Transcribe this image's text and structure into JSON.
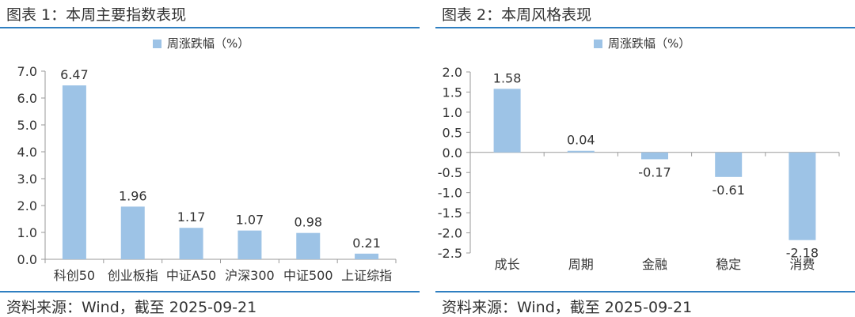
{
  "colors": {
    "bar": "#9dc3e6",
    "rule": "#2f7fc1",
    "axis": "#9a9a9a"
  },
  "charts": [
    {
      "title": "图表 1：本周主要指数表现",
      "source": "资料来源：Wind，截至 2025-09-21"
    },
    {
      "title": "图表 2：本周风格表现",
      "source": "资料来源：Wind，截至 2025-09-21"
    }
  ],
  "chart_data": [
    {
      "type": "bar",
      "legend": "周涨跌幅（%）",
      "legend_position": "top-center",
      "categories": [
        "科创50",
        "创业板指",
        "中证A50",
        "沪深300",
        "中证500",
        "上证综指"
      ],
      "series": [
        {
          "name": "周涨跌幅（%）",
          "values": [
            6.47,
            1.96,
            1.17,
            1.07,
            0.98,
            0.21
          ]
        }
      ],
      "data_labels": [
        "6.47",
        "1.96",
        "1.17",
        "1.07",
        "0.98",
        "0.21"
      ],
      "ylim": [
        0,
        7
      ],
      "yticks": [
        0,
        1,
        2,
        3,
        4,
        5,
        6,
        7
      ],
      "ytick_labels": [
        "0.0",
        "1.0",
        "2.0",
        "3.0",
        "4.0",
        "5.0",
        "6.0",
        "7.0"
      ],
      "grid": false
    },
    {
      "type": "bar",
      "legend": "周涨跌幅（%）",
      "legend_position": "top-center",
      "categories": [
        "成长",
        "周期",
        "金融",
        "稳定",
        "消费"
      ],
      "series": [
        {
          "name": "周涨跌幅（%）",
          "values": [
            1.58,
            0.04,
            -0.17,
            -0.61,
            -2.18
          ]
        }
      ],
      "data_labels": [
        "1.58",
        "0.04",
        "-0.17",
        "-0.61",
        "-2.18"
      ],
      "ylim": [
        -2.5,
        2
      ],
      "yticks": [
        -2.5,
        -2,
        -1.5,
        -1,
        -0.5,
        0,
        0.5,
        1,
        1.5,
        2
      ],
      "ytick_labels": [
        "-2.5",
        "-2.0",
        "-1.5",
        "-1.0",
        "-0.5",
        "0.0",
        "0.5",
        "1.0",
        "1.5",
        "2.0"
      ],
      "grid": false
    }
  ]
}
